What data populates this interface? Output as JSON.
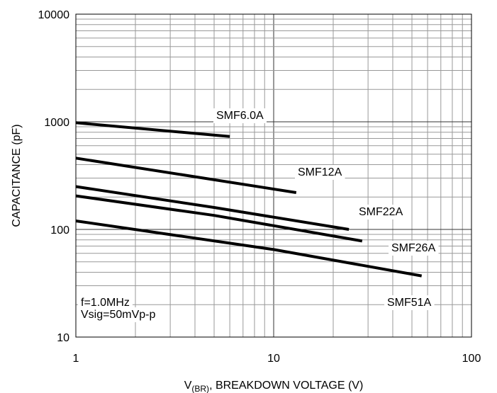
{
  "chart_data": {
    "type": "line",
    "title": "",
    "xlabel_prefix": "V",
    "xlabel_sub": "(BR)",
    "xlabel_rest": ", BREAKDOWN VOLTAGE (V)",
    "ylabel": "CAPACITANCE (pF)",
    "x_scale": "log",
    "y_scale": "log",
    "xlim": [
      1,
      100
    ],
    "ylim": [
      10,
      10000
    ],
    "x_ticks": [
      {
        "value": 1,
        "label": "1"
      },
      {
        "value": 10,
        "label": "10"
      },
      {
        "value": 100,
        "label": "100"
      }
    ],
    "y_ticks": [
      {
        "value": 10,
        "label": "10"
      },
      {
        "value": 100,
        "label": "100"
      },
      {
        "value": 1000,
        "label": "1000"
      },
      {
        "value": 10000,
        "label": "10000"
      }
    ],
    "grid": true,
    "line_color": "#000000",
    "grid_color": "#999999",
    "series": [
      {
        "name": "SMF6.0A",
        "x": [
          1,
          6
        ],
        "y": [
          980,
          730
        ]
      },
      {
        "name": "SMF12A",
        "x": [
          1,
          13
        ],
        "y": [
          460,
          220
        ]
      },
      {
        "name": "SMF22A",
        "x": [
          1,
          5,
          24
        ],
        "y": [
          250,
          160,
          100
        ]
      },
      {
        "name": "SMF26A",
        "x": [
          1,
          5,
          28
        ],
        "y": [
          205,
          135,
          78
        ]
      },
      {
        "name": "SMF51A",
        "x": [
          1,
          10,
          56
        ],
        "y": [
          120,
          65,
          37
        ]
      }
    ],
    "annotations": [
      "f=1.0MHz",
      "Vsig=50mVp-p"
    ]
  }
}
